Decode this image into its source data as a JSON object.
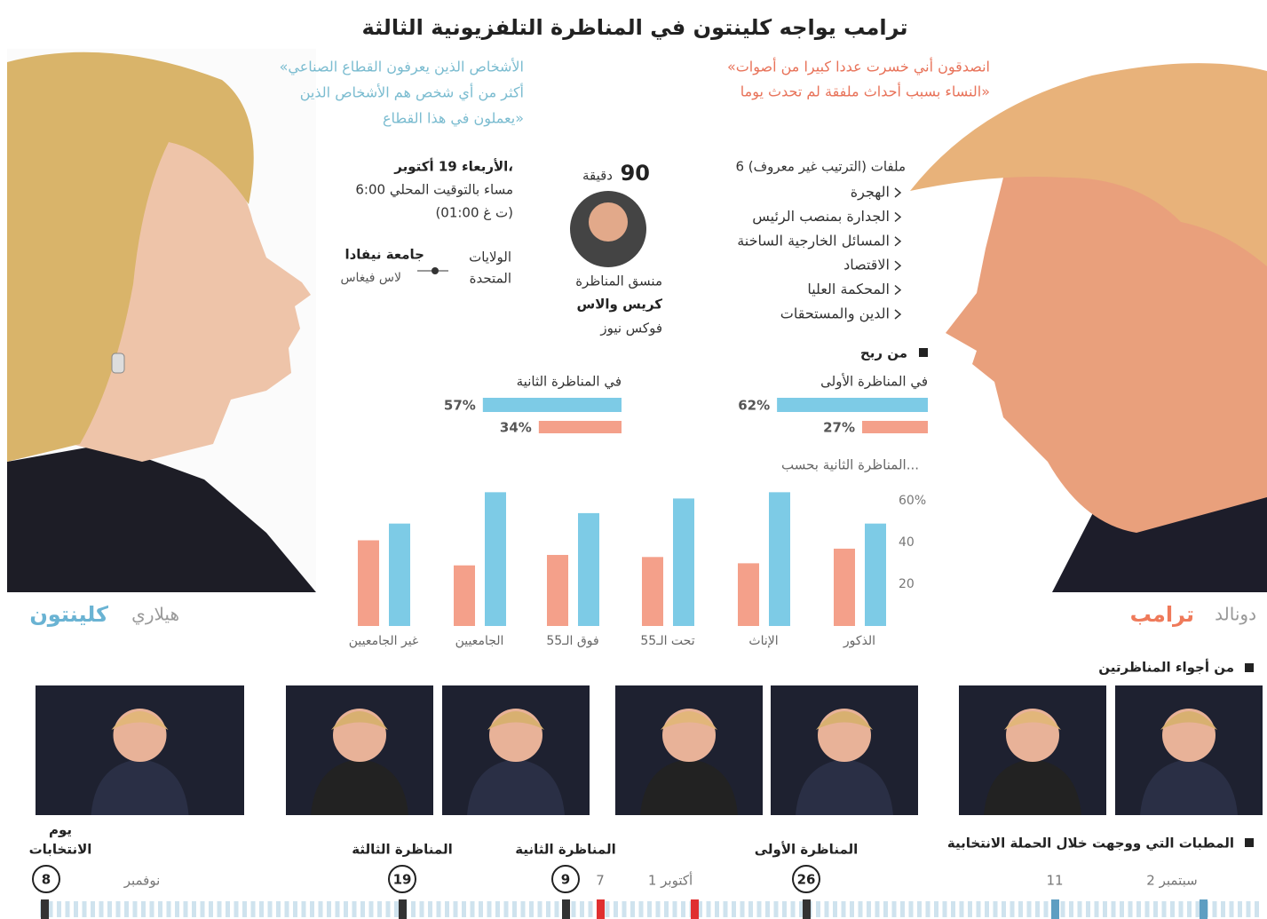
{
  "title": "ترامب يواجه كلينتون في المناظرة التلفزيونية الثالثة",
  "quotes": {
    "trump": [
      "«انصدقون أني خسرت عددا كبيرا من أصوات",
      "النساء بسبب أحداث ملفقة لم تحدث يوما»"
    ],
    "clinton": [
      "«الأشخاص الذين يعرفون القطاع الصناعي",
      "أكثر من أي شخص هم الأشخاص الذين",
      "يعملون في هذا القطاع»"
    ]
  },
  "event": {
    "date": "الأربعاء 19 أكتوبر،",
    "time": "6:00 مساء بالتوقيت المحلي",
    "gmt": "(01:00 ت غ)",
    "country": [
      "الولايات",
      "المتحدة"
    ],
    "venue": "جامعة نيفادا",
    "city": "لاس فيغاس"
  },
  "duration": {
    "value": 90,
    "unit": "دقيقة"
  },
  "moderator": {
    "role": "منسق المناظرة",
    "name": "كريس والاس",
    "network": "فوكس نيوز"
  },
  "topics": {
    "heading": "6 ملفات (الترتيب غير معروف)",
    "items": [
      "الهجرة",
      "الجدارة بمنصب الرئيس",
      "المسائل الخارجية الساخنة",
      "الاقتصاد",
      "المحكمة العليا",
      "الدين والمستحقات"
    ]
  },
  "names": {
    "trump_first": "دونالد",
    "trump_last": "ترامب",
    "clinton_first": "هيلاري",
    "clinton_last": "كلينتون"
  },
  "chart_data": [
    {
      "type": "hbar",
      "title": "من ربح",
      "categories": [
        "في المناظرة الأولى",
        "في المناظرة الثانية"
      ],
      "series": [
        {
          "color": "#7dcbe6",
          "values": [
            62,
            57
          ],
          "value_labels": [
            "62%",
            "57%"
          ]
        },
        {
          "color": "#f4a08a",
          "values": [
            27,
            34
          ],
          "value_labels": [
            "27%",
            "34%"
          ]
        }
      ]
    },
    {
      "type": "bar",
      "title": "المناظرة الثانية بحسب...",
      "categories": [
        "الذكور",
        "الإناث",
        "تحت الـ55",
        "فوق الـ55",
        "الجامعيين",
        "غير الجامعيين"
      ],
      "series": [
        {
          "color": "#f4a08a",
          "values": [
            37,
            30,
            33,
            34,
            29,
            41
          ]
        },
        {
          "color": "#7dcbe6",
          "values": [
            49,
            64,
            61,
            54,
            64,
            49
          ]
        }
      ],
      "ylim": [
        0,
        65
      ],
      "yticks": [
        20,
        40,
        {
          "value": 60,
          "label": "60%"
        }
      ]
    }
  ],
  "photos_heading": "من أجواء المناظرتين",
  "timeline": {
    "heading": "المطبات التي ووجهت خلال الحملة الانتخابية",
    "events": [
      {
        "label": [
          "المناظرة الأولى"
        ],
        "day": 26
      },
      {
        "label": [
          "المناظرة الثانية"
        ],
        "day": 9
      },
      {
        "label": [
          "المناظرة الثالثة"
        ],
        "day": 19
      },
      {
        "label": [
          "يوم",
          "الانتخابات"
        ],
        "day": 8
      }
    ],
    "dates": [
      "2 سبتمبر",
      11,
      "1 أكتوبر",
      7,
      "نوفمبر"
    ]
  }
}
